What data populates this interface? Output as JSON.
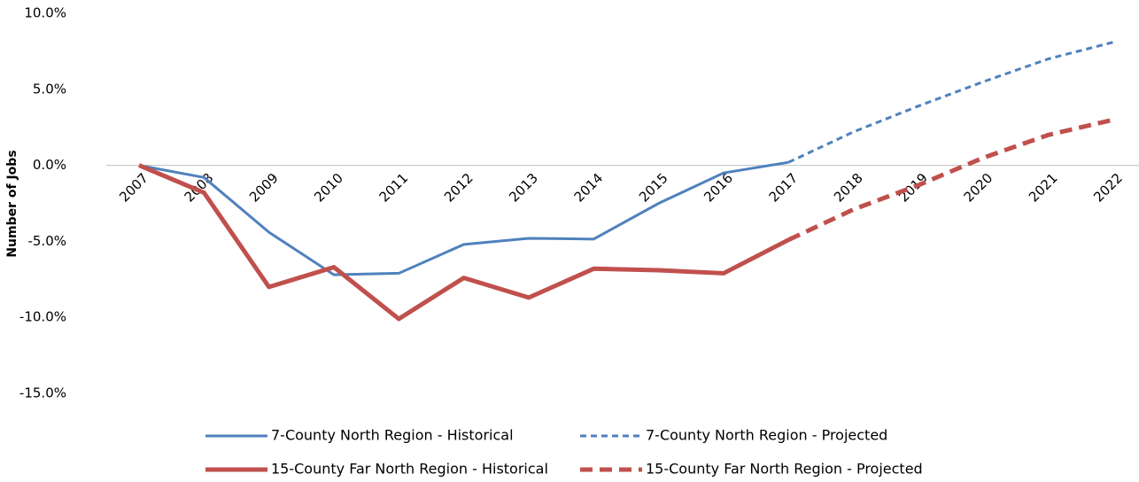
{
  "chart_data": {
    "type": "line",
    "y_label": "Number of Jobs",
    "categories": [
      "2007",
      "2008",
      "2009",
      "2010",
      "2011",
      "2012",
      "2013",
      "2014",
      "2015",
      "2016",
      "2017",
      "2018",
      "2019",
      "2020",
      "2021",
      "2022"
    ],
    "series": [
      {
        "name": "7-County North Region - Historical",
        "color": "#4f81bd",
        "style": "solid",
        "width": 3,
        "values": [
          0,
          -0.8,
          -4.4,
          -7.2,
          -7.1,
          -5.2,
          -4.8,
          -4.85,
          -2.5,
          -0.5,
          0.2,
          null,
          null,
          null,
          null,
          null
        ]
      },
      {
        "name": "7-County North Region - Projected",
        "color": "#4f81bd",
        "style": "dashed",
        "width": 3,
        "values": [
          null,
          null,
          null,
          null,
          null,
          null,
          null,
          null,
          null,
          null,
          0.2,
          2.2,
          3.9,
          5.5,
          7.0,
          8.1
        ]
      },
      {
        "name": "15-County Far North Region - Historical",
        "color": "#c0504d",
        "style": "solid",
        "width": 5,
        "values": [
          0,
          -1.8,
          -8.0,
          -6.7,
          -10.1,
          -7.4,
          -8.7,
          -6.8,
          -6.9,
          -7.1,
          -4.9,
          null,
          null,
          null,
          null,
          null
        ]
      },
      {
        "name": "15-County Far North Region - Projected",
        "color": "#c0504d",
        "style": "dashed",
        "width": 5,
        "values": [
          null,
          null,
          null,
          null,
          null,
          null,
          null,
          null,
          null,
          null,
          -4.9,
          -2.9,
          -1.3,
          0.5,
          2.0,
          3.0
        ]
      }
    ],
    "ylim": [
      -15,
      10
    ],
    "yticks": [
      {
        "value": -15,
        "label": "-15.0%"
      },
      {
        "value": -10,
        "label": "-10.0%"
      },
      {
        "value": -5,
        "label": "-5.0%"
      },
      {
        "value": 0,
        "label": "0.0%"
      },
      {
        "value": 5,
        "label": "5.0%"
      },
      {
        "value": 10,
        "label": "10.0%"
      }
    ],
    "zero_line": true,
    "legend": "bottom"
  }
}
